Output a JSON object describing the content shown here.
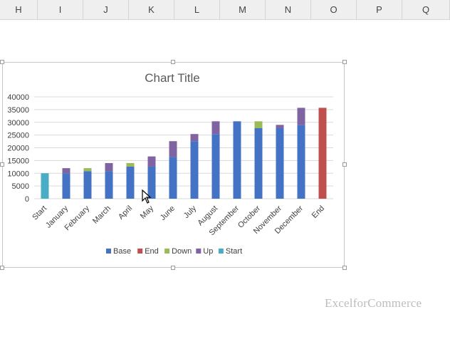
{
  "columns": [
    "H",
    "I",
    "J",
    "K",
    "L",
    "M",
    "N",
    "O",
    "P",
    "Q"
  ],
  "watermark": "ExcelforCommerce",
  "chart_data": {
    "type": "bar",
    "stacked": true,
    "title": "Chart Title",
    "categories": [
      "Start",
      "January",
      "February",
      "March",
      "April",
      "May",
      "June",
      "July",
      "August",
      "September",
      "October",
      "November",
      "December",
      "End"
    ],
    "ylim": [
      0,
      40000
    ],
    "yticks": [
      0,
      5000,
      10000,
      15000,
      20000,
      25000,
      30000,
      35000,
      40000
    ],
    "grid": true,
    "legend_position": "bottom",
    "series": [
      {
        "name": "Base",
        "color": "#4472c4",
        "values": [
          0,
          10000,
          10800,
          10800,
          12600,
          12600,
          16400,
          22600,
          25400,
          30400,
          27700,
          27700,
          29000,
          0
        ]
      },
      {
        "name": "End",
        "color": "#c0504d",
        "values": [
          0,
          0,
          0,
          0,
          0,
          0,
          0,
          0,
          0,
          0,
          0,
          0,
          0,
          35700
        ]
      },
      {
        "name": "Down",
        "color": "#9bbb59",
        "values": [
          0,
          0,
          1200,
          0,
          1400,
          0,
          0,
          0,
          0,
          0,
          2700,
          0,
          0,
          0
        ]
      },
      {
        "name": "Up",
        "color": "#8064a2",
        "values": [
          0,
          2000,
          0,
          3200,
          0,
          4000,
          6200,
          2800,
          5000,
          0,
          0,
          1300,
          6700,
          0
        ]
      },
      {
        "name": "Start",
        "color": "#4bacc6",
        "values": [
          10000,
          0,
          0,
          0,
          0,
          0,
          0,
          0,
          0,
          0,
          0,
          0,
          0,
          0
        ]
      }
    ]
  }
}
